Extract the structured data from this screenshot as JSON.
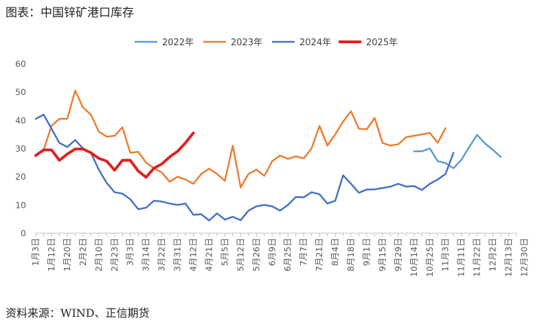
{
  "title": "图表：中国锌矿港口库存",
  "source": "资料来源：WIND、正信期货",
  "chart_data": {
    "type": "line",
    "ylim": [
      0,
      60
    ],
    "yticks": [
      0,
      10,
      20,
      30,
      40,
      50,
      60
    ],
    "grid": false,
    "legend_position": "top",
    "x_tick_labels": [
      "1月3日",
      "1月12日",
      "1月20日",
      "2月2日",
      "2月10日",
      "2月23日",
      "3月3日",
      "3月14日",
      "3月22日",
      "3月31日",
      "4月12日",
      "4月21日",
      "5月5日",
      "5月12日",
      "5月26日",
      "6月9日",
      "6月25日",
      "7月7日",
      "7月21日",
      "8月4日",
      "8月18日",
      "9月1日",
      "9月15日",
      "9月29日",
      "10月14日",
      "10月25日",
      "11月3日",
      "11月11日",
      "11月22日",
      "12月2日",
      "12月13日",
      "12月30日"
    ],
    "series": [
      {
        "name": "2022年",
        "color": "#5b9bd5",
        "width": 2.5,
        "x": [
          48,
          49,
          50,
          51,
          52,
          53,
          54,
          55,
          56,
          57,
          58,
          59,
          60,
          61
        ],
        "values": [
          29,
          29,
          30,
          25.5,
          24.8,
          23,
          26,
          30.5,
          34.8,
          31.8,
          29.5,
          27,
          null,
          null
        ]
      },
      {
        "name": "2023年",
        "color": "#ed7d31",
        "width": 2.5,
        "x": [
          0,
          1,
          2,
          3,
          4,
          5,
          6,
          7,
          8,
          9,
          10,
          11,
          12,
          13,
          14,
          15,
          16,
          17,
          18,
          19,
          20,
          21,
          22,
          23,
          24,
          25,
          26,
          27,
          28,
          29,
          30,
          31,
          32,
          33,
          34,
          35,
          36,
          37,
          38,
          39,
          40,
          41,
          42,
          43,
          44,
          45,
          46,
          47,
          48,
          49,
          50,
          51,
          52,
          53,
          54,
          55,
          56,
          57,
          58,
          59,
          60,
          61
        ],
        "values": [
          null,
          29.5,
          38,
          40.5,
          40.5,
          50.5,
          44.5,
          42,
          36,
          34.2,
          34.5,
          37.5,
          28.5,
          28.8,
          25,
          23,
          21.5,
          18.2,
          20,
          19,
          17.5,
          21,
          22.8,
          21,
          18.5,
          31,
          16.2,
          21,
          22.5,
          20.3,
          25.5,
          27.5,
          26.3,
          27.2,
          26.5,
          30,
          38,
          31,
          35,
          39.5,
          43.2,
          37,
          36.8,
          40.8,
          32,
          31,
          31.5,
          34,
          34.5,
          35,
          35.5,
          32,
          37.2,
          null,
          null,
          null,
          null,
          null,
          null,
          null,
          null,
          null
        ]
      },
      {
        "name": "2024年",
        "color": "#4472c4",
        "width": 2.5,
        "x": [
          0,
          1,
          2,
          3,
          4,
          5,
          6,
          7,
          8,
          9,
          10,
          11,
          12,
          13,
          14,
          15,
          16,
          17,
          18,
          19,
          20,
          21,
          22,
          23,
          24,
          25,
          26,
          27,
          28,
          29,
          30,
          31,
          32,
          33,
          34,
          35,
          36,
          37,
          38,
          39,
          40,
          41,
          42,
          43,
          44,
          45,
          46,
          47,
          48,
          49,
          50,
          51,
          52,
          53,
          54,
          55,
          56,
          57,
          58,
          59,
          60,
          61
        ],
        "values": [
          40.5,
          42,
          37,
          32,
          30.5,
          33,
          30,
          28.5,
          22.5,
          17.8,
          14.5,
          14,
          12,
          8.5,
          9,
          11.5,
          11.2,
          10.5,
          10,
          10.5,
          6.5,
          6.7,
          4.5,
          7,
          4.8,
          5.8,
          4.6,
          8,
          9.5,
          10,
          9.5,
          8,
          10,
          12.8,
          12.7,
          14.5,
          13.8,
          10.5,
          11.5,
          20.5,
          17.5,
          14.3,
          15.5,
          15.5,
          16,
          16.5,
          17.5,
          16.5,
          16.7,
          15.3,
          17.5,
          19,
          21,
          28.5,
          null,
          null,
          null,
          null,
          null,
          null,
          null,
          null
        ]
      },
      {
        "name": "2025年",
        "color": "#e02020",
        "width": 4,
        "x": [
          0,
          1,
          2,
          3,
          4,
          5,
          6,
          7,
          8,
          9,
          10,
          11,
          12,
          13,
          14,
          15,
          16,
          17,
          18,
          19,
          20,
          21,
          22,
          23,
          24
        ],
        "values": [
          27.5,
          29.5,
          29.5,
          25.8,
          28,
          29.8,
          29.8,
          28.5,
          26.5,
          25.5,
          22.3,
          25.8,
          25.8,
          22,
          19.8,
          23,
          24.5,
          27,
          29,
          32,
          35.5,
          null,
          null,
          null,
          null
        ]
      }
    ]
  }
}
